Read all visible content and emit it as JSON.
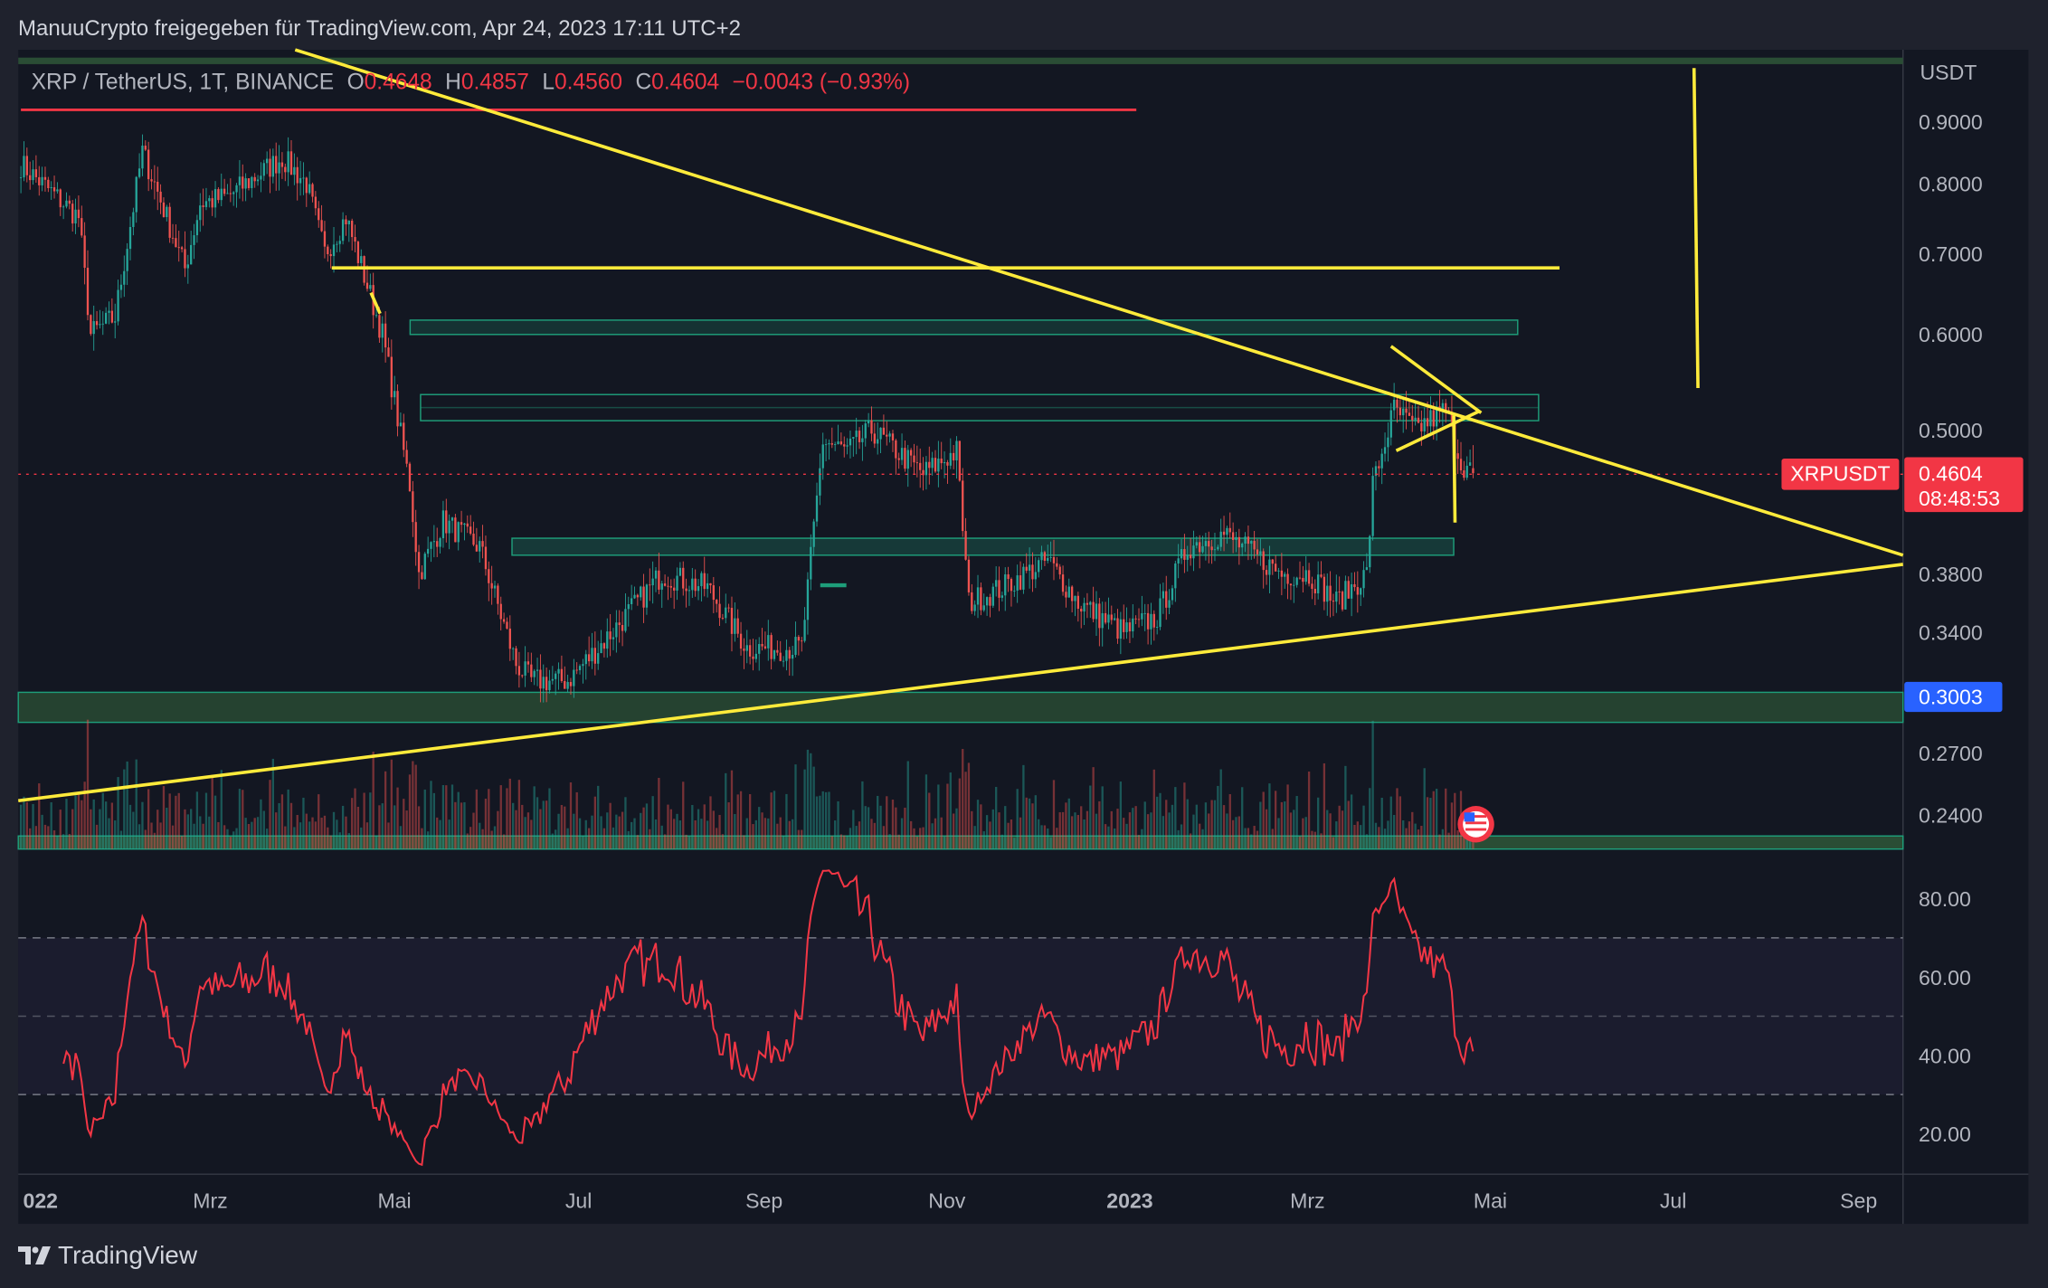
{
  "header": {
    "title": "ManuuCrypto freigegeben für TradingView.com, Apr 24, 2023 17:11 UTC+2"
  },
  "legend": {
    "symbol": "XRP / TetherUS, 1T, BINANCE",
    "o_label": "O",
    "o": "0.4648",
    "h_label": "H",
    "h": "0.4857",
    "l_label": "L",
    "l": "0.4560",
    "c_label": "C",
    "c": "0.4604",
    "change": "−0.0043 (−0.93%)"
  },
  "price_axis": {
    "currency": "USDT",
    "ticks": [
      "0.9000",
      "0.8000",
      "0.7000",
      "0.6000",
      "0.5000",
      "0.3800",
      "0.3400",
      "0.2700",
      "0.2400"
    ],
    "last_label": "XRPUSDT",
    "last_price": "0.4604",
    "countdown": "08:48:53",
    "marker_price": "0.3003"
  },
  "rsi_axis": {
    "ticks": [
      "80.00",
      "60.00",
      "40.00",
      "20.00"
    ]
  },
  "time_axis": {
    "ticks": [
      "022",
      "Mrz",
      "Mai",
      "Jul",
      "Sep",
      "Nov",
      "2023",
      "Mrz",
      "Mai",
      "Jul",
      "Sep"
    ]
  },
  "footer": {
    "brand": "TradingView"
  },
  "colors": {
    "up": "#26a69a",
    "down": "#ef5350",
    "drawing": "#ffeb3b",
    "zone": "#1e9e7a",
    "rsi": "#f23645",
    "last_price": "#f23645",
    "marker": "#2962ff",
    "background": "#131722"
  },
  "chart_data": {
    "type": "candlestick",
    "symbol": "XRPUSDT",
    "interval": "1T",
    "y_scale": "log",
    "ylim": [
      0.225,
      1.0
    ],
    "price_path": [
      [
        "2022-01-01",
        0.83
      ],
      [
        "2022-01-20",
        0.75
      ],
      [
        "2022-01-24",
        0.6
      ],
      [
        "2022-02-01",
        0.62
      ],
      [
        "2022-02-10",
        0.85
      ],
      [
        "2022-02-14",
        0.8
      ],
      [
        "2022-02-24",
        0.68
      ],
      [
        "2022-03-01",
        0.77
      ],
      [
        "2022-03-10",
        0.78
      ],
      [
        "2022-03-28",
        0.84
      ],
      [
        "2022-04-05",
        0.8
      ],
      [
        "2022-04-11",
        0.7
      ],
      [
        "2022-04-18",
        0.75
      ],
      [
        "2022-04-30",
        0.6
      ],
      [
        "2022-05-09",
        0.45
      ],
      [
        "2022-05-12",
        0.38
      ],
      [
        "2022-05-20",
        0.42
      ],
      [
        "2022-06-01",
        0.4
      ],
      [
        "2022-06-13",
        0.32
      ],
      [
        "2022-06-18",
        0.31
      ],
      [
        "2022-06-30",
        0.31
      ],
      [
        "2022-07-10",
        0.33
      ],
      [
        "2022-07-31",
        0.38
      ],
      [
        "2022-08-15",
        0.37
      ],
      [
        "2022-08-28",
        0.33
      ],
      [
        "2022-09-15",
        0.33
      ],
      [
        "2022-09-22",
        0.49
      ],
      [
        "2022-09-30",
        0.48
      ],
      [
        "2022-10-08",
        0.5
      ],
      [
        "2022-10-25",
        0.46
      ],
      [
        "2022-11-05",
        0.48
      ],
      [
        "2022-11-09",
        0.36
      ],
      [
        "2022-11-20",
        0.37
      ],
      [
        "2022-12-05",
        0.39
      ],
      [
        "2022-12-15",
        0.36
      ],
      [
        "2022-12-30",
        0.34
      ],
      [
        "2023-01-10",
        0.35
      ],
      [
        "2023-01-20",
        0.4
      ],
      [
        "2023-02-01",
        0.41
      ],
      [
        "2023-02-20",
        0.38
      ],
      [
        "2023-03-01",
        0.38
      ],
      [
        "2023-03-10",
        0.36
      ],
      [
        "2023-03-20",
        0.38
      ],
      [
        "2023-03-22",
        0.45
      ],
      [
        "2023-03-29",
        0.52
      ],
      [
        "2023-04-05",
        0.5
      ],
      [
        "2023-04-15",
        0.52
      ],
      [
        "2023-04-20",
        0.47
      ],
      [
        "2023-04-24",
        0.4604
      ]
    ],
    "last_candle": {
      "open": 0.4648,
      "high": 0.4857,
      "low": 0.456,
      "close": 0.4604
    },
    "indicator": {
      "name": "RSI",
      "levels": [
        70,
        50,
        30
      ],
      "ylim": [
        10,
        90
      ]
    }
  }
}
